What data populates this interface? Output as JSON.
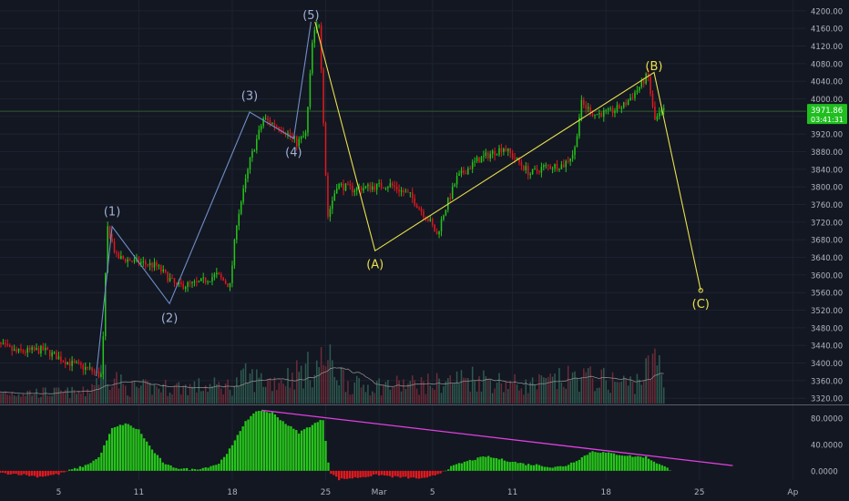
{
  "colors": {
    "background": "#131722",
    "grid": "#1e2230",
    "up": "#26c41a",
    "down": "#e0191e",
    "wave_impulse": "#6f8fc7",
    "wave_corrective": "#e8e04a",
    "label_impulse": "#9fb2d6",
    "divergence": "#e040e0",
    "axis_text": "#b0b3bd",
    "price_badge": "#1fbf1f",
    "crosshair": "#2f5a2f",
    "volume_up": "#2e5a4f",
    "volume_down": "#6b2b37",
    "volume_ma": "#8a8a8a"
  },
  "chart_data": {
    "type": "candlestick",
    "title": "",
    "price_axis": {
      "ticks": [
        "4200.00",
        "4160.00",
        "4120.00",
        "4080.00",
        "4040.00",
        "4000.00",
        "3960.00",
        "3920.00",
        "3880.00",
        "3840.00",
        "3800.00",
        "3760.00",
        "3720.00",
        "3680.00",
        "3640.00",
        "3600.00",
        "3560.00",
        "3520.00",
        "3480.00",
        "3440.00",
        "3400.00",
        "3360.00",
        "3320.00"
      ],
      "range": [
        3308,
        4208
      ]
    },
    "current_price": "3971.86",
    "countdown": "03:41:31",
    "x_axis": {
      "ticks": [
        {
          "label": "5",
          "day": 5
        },
        {
          "label": "11",
          "day": 11
        },
        {
          "label": "18",
          "day": 18
        },
        {
          "label": "25",
          "day": 25
        },
        {
          "label": "Mar",
          "day": 29
        },
        {
          "label": "5",
          "day": 33
        },
        {
          "label": "11",
          "day": 39
        },
        {
          "label": "18",
          "day": 46
        },
        {
          "label": "25",
          "day": 53
        },
        {
          "label": "Ap",
          "day": 60
        }
      ],
      "range_days": [
        0.6,
        61
      ]
    },
    "price_anchors": [
      [
        0,
        3450
      ],
      [
        2,
        3425
      ],
      [
        4,
        3430
      ],
      [
        6,
        3400
      ],
      [
        7.5,
        3385
      ],
      [
        8.4,
        3370
      ],
      [
        8.8,
        3710
      ],
      [
        9.5,
        3640
      ],
      [
        11,
        3630
      ],
      [
        12.5,
        3620
      ],
      [
        14,
        3575
      ],
      [
        15.5,
        3580
      ],
      [
        17,
        3600
      ],
      [
        18,
        3575
      ],
      [
        18.5,
        3720
      ],
      [
        19.5,
        3860
      ],
      [
        20.5,
        3955
      ],
      [
        22,
        3930
      ],
      [
        23,
        3900
      ],
      [
        23.7,
        3920
      ],
      [
        24.2,
        4140
      ],
      [
        24.7,
        4175
      ],
      [
        25.3,
        3730
      ],
      [
        26,
        3805
      ],
      [
        27.2,
        3795
      ],
      [
        28.5,
        3800
      ],
      [
        30,
        3805
      ],
      [
        31.5,
        3780
      ],
      [
        33,
        3720
      ],
      [
        33.5,
        3690
      ],
      [
        34,
        3740
      ],
      [
        35,
        3820
      ],
      [
        36.5,
        3860
      ],
      [
        37.5,
        3875
      ],
      [
        38.5,
        3890
      ],
      [
        39.5,
        3860
      ],
      [
        40.5,
        3830
      ],
      [
        41.5,
        3845
      ],
      [
        43,
        3850
      ],
      [
        43.8,
        3880
      ],
      [
        44.3,
        3990
      ],
      [
        45.3,
        3965
      ],
      [
        46.5,
        3970
      ],
      [
        47.5,
        3985
      ],
      [
        48.5,
        4020
      ],
      [
        49.3,
        4055
      ],
      [
        49.8,
        3950
      ],
      [
        50.4,
        3972
      ]
    ],
    "elliott_waves": {
      "impulse": {
        "points": [
          [
            7.8,
            3370
          ],
          [
            9,
            3710
          ],
          [
            13.3,
            3535
          ],
          [
            19.3,
            3970
          ],
          [
            22.6,
            3910
          ],
          [
            23.9,
            4175
          ]
        ],
        "labels": [
          {
            "text": "(1)",
            "day": 9,
            "price": 3742,
            "anchor": "above"
          },
          {
            "text": "(2)",
            "day": 13.3,
            "price": 3500,
            "anchor": "below"
          },
          {
            "text": "(3)",
            "day": 19.3,
            "price": 4005,
            "anchor": "above"
          },
          {
            "text": "(4)",
            "day": 22.6,
            "price": 3877,
            "anchor": "below"
          },
          {
            "text": "(5)",
            "day": 23.9,
            "price": 4188,
            "anchor": "above"
          }
        ]
      },
      "corrective": {
        "points": [
          [
            24.2,
            4175
          ],
          [
            28.7,
            3655
          ],
          [
            49.6,
            4060
          ],
          [
            53.1,
            3565
          ]
        ],
        "labels": [
          {
            "text": "(A)",
            "day": 28.7,
            "price": 3622,
            "anchor": "below"
          },
          {
            "text": "(B)",
            "day": 49.6,
            "price": 4072,
            "anchor": "above"
          },
          {
            "text": "(C)",
            "day": 53.1,
            "price": 3533,
            "anchor": "below"
          }
        ]
      }
    },
    "volume": {
      "baseline_y_label": "",
      "profile_anchors": [
        [
          0,
          0.25
        ],
        [
          7,
          0.25
        ],
        [
          8.5,
          0.8
        ],
        [
          10,
          0.35
        ],
        [
          18,
          0.4
        ],
        [
          19,
          0.6
        ],
        [
          21,
          0.5
        ],
        [
          24,
          0.8
        ],
        [
          25,
          1.0
        ],
        [
          27,
          0.4
        ],
        [
          33,
          0.45
        ],
        [
          36,
          0.6
        ],
        [
          40,
          0.4
        ],
        [
          44,
          0.6
        ],
        [
          48,
          0.45
        ],
        [
          50,
          1.0
        ],
        [
          50.5,
          0.3
        ]
      ]
    },
    "oscillator": {
      "ticks": [
        "80.0000",
        "40.0000",
        "0.0000"
      ],
      "range": [
        -14,
        98
      ],
      "anchors": [
        [
          0,
          -3
        ],
        [
          2,
          -5
        ],
        [
          3.5,
          -9
        ],
        [
          5,
          -5
        ],
        [
          6,
          2
        ],
        [
          7,
          8
        ],
        [
          8,
          20
        ],
        [
          9,
          64
        ],
        [
          10,
          72
        ],
        [
          11,
          62
        ],
        [
          12,
          32
        ],
        [
          13,
          9
        ],
        [
          14,
          4
        ],
        [
          15,
          2
        ],
        [
          16,
          5
        ],
        [
          17,
          11
        ],
        [
          18,
          38
        ],
        [
          19,
          76
        ],
        [
          20,
          92
        ],
        [
          21,
          88
        ],
        [
          22,
          72
        ],
        [
          23,
          58
        ],
        [
          24,
          70
        ],
        [
          24.8,
          78
        ],
        [
          25.3,
          -2
        ],
        [
          26,
          -13
        ],
        [
          27.5,
          -10
        ],
        [
          29,
          -6
        ],
        [
          30,
          -9
        ],
        [
          31.5,
          -11
        ],
        [
          32.5,
          -12
        ],
        [
          33.5,
          -4
        ],
        [
          34.5,
          7
        ],
        [
          35.5,
          14
        ],
        [
          37,
          22
        ],
        [
          38,
          18
        ],
        [
          39,
          14
        ],
        [
          40,
          10
        ],
        [
          41,
          9
        ],
        [
          42,
          5
        ],
        [
          43,
          8
        ],
        [
          44,
          18
        ],
        [
          45,
          30
        ],
        [
          46.5,
          26
        ],
        [
          48,
          22
        ],
        [
          49,
          21
        ],
        [
          50,
          10
        ],
        [
          51,
          0
        ]
      ],
      "divergence_line": [
        [
          20.2,
          92
        ],
        [
          55.5,
          8
        ]
      ]
    }
  }
}
